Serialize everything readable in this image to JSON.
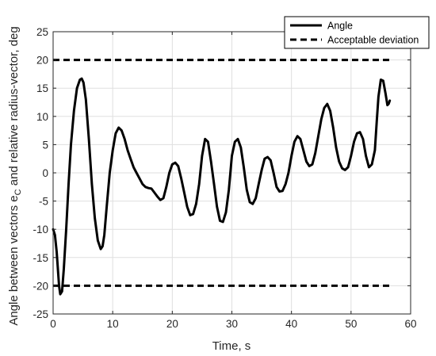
{
  "chart_data": {
    "type": "line",
    "xlabel": "Time, s",
    "ylabel": {
      "prefix": "Angle between vectors e",
      "subscript": "C",
      "suffix": " and relative radius-vector, deg"
    },
    "xlim": [
      0,
      60
    ],
    "ylim": [
      -25,
      25
    ],
    "xticks": [
      0,
      10,
      20,
      30,
      40,
      50,
      60
    ],
    "yticks": [
      -25,
      -20,
      -15,
      -10,
      -5,
      0,
      5,
      10,
      15,
      20,
      25
    ],
    "grid": true,
    "box": true,
    "legend_position": "top-right",
    "series": [
      {
        "name": "Angle",
        "style": "solid",
        "color": "#000000",
        "x": [
          0,
          0.3,
          0.6,
          0.8,
          1.0,
          1.2,
          1.5,
          1.8,
          2.2,
          2.6,
          3.0,
          3.5,
          4.0,
          4.5,
          4.8,
          5.1,
          5.5,
          6.0,
          6.5,
          7.0,
          7.5,
          8.0,
          8.3,
          8.6,
          9.0,
          9.5,
          10.0,
          10.5,
          11.0,
          11.5,
          12.0,
          12.5,
          13.0,
          13.5,
          14.0,
          14.5,
          15.0,
          15.5,
          16.0,
          16.5,
          17.0,
          17.5,
          18.0,
          18.5,
          19.0,
          19.5,
          20.0,
          20.5,
          21.0,
          21.5,
          22.0,
          22.5,
          23.0,
          23.5,
          24.0,
          24.5,
          25.0,
          25.5,
          26.0,
          26.5,
          27.0,
          27.5,
          28.0,
          28.5,
          29.0,
          29.5,
          30.0,
          30.5,
          31.0,
          31.5,
          32.0,
          32.5,
          33.0,
          33.5,
          34.0,
          34.5,
          35.0,
          35.5,
          36.0,
          36.5,
          37.0,
          37.5,
          38.0,
          38.5,
          39.0,
          39.5,
          40.0,
          40.5,
          41.0,
          41.5,
          42.0,
          42.5,
          43.0,
          43.5,
          44.0,
          44.5,
          45.0,
          45.5,
          46.0,
          46.5,
          47.0,
          47.5,
          48.0,
          48.5,
          49.0,
          49.5,
          50.0,
          50.5,
          51.0,
          51.5,
          52.0,
          52.5,
          53.0,
          53.5,
          54.0,
          54.3,
          54.6,
          55.0,
          55.4,
          55.8,
          56.1,
          56.3,
          56.5
        ],
        "y": [
          -10,
          -11,
          -14,
          -17,
          -20,
          -21.5,
          -21,
          -17,
          -10,
          -2,
          5,
          11,
          15,
          16.5,
          16.7,
          16,
          13,
          6,
          -2,
          -8,
          -12,
          -13.5,
          -13,
          -11,
          -6,
          0,
          4,
          7,
          8,
          7.5,
          6,
          4,
          2.5,
          1,
          0,
          -1,
          -2,
          -2.5,
          -2.7,
          -2.8,
          -3.5,
          -4.2,
          -4.8,
          -4.5,
          -2.5,
          0,
          1.5,
          1.8,
          1.2,
          -1,
          -3.5,
          -6,
          -7.5,
          -7.3,
          -5.5,
          -2,
          3,
          6,
          5.5,
          2,
          -2,
          -6,
          -8.5,
          -8.7,
          -7,
          -3,
          3,
          5.5,
          6,
          4.5,
          1,
          -3,
          -5.2,
          -5.5,
          -4.5,
          -2,
          0.5,
          2.5,
          2.8,
          2.2,
          0,
          -2.5,
          -3.3,
          -3.2,
          -2,
          0,
          3,
          5.5,
          6.5,
          6,
          4,
          2,
          1.2,
          1.5,
          3.5,
          6.5,
          9.5,
          11.5,
          12.2,
          11,
          8,
          4.5,
          2,
          0.8,
          0.5,
          1,
          3,
          5.5,
          7,
          7.2,
          6,
          3,
          1,
          1.5,
          4,
          9,
          13.5,
          16.5,
          16.3,
          14,
          12,
          12.2,
          12.8
        ]
      },
      {
        "name": "Acceptable deviation",
        "style": "dashed",
        "color": "#000000",
        "x": [
          0,
          56.5
        ],
        "y": [
          20,
          20
        ],
        "lower": [
          -20,
          -20
        ]
      }
    ]
  }
}
